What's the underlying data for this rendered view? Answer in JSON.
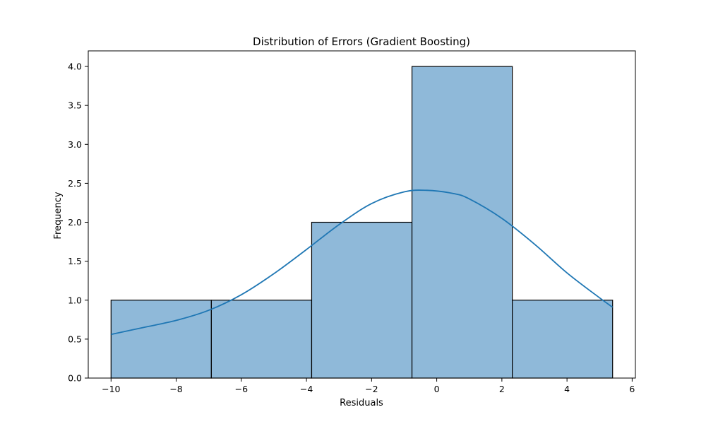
{
  "chart_data": {
    "type": "bar",
    "title": "Distribution of Errors (Gradient Boosting)",
    "xlabel": "Residuals",
    "ylabel": "Frequency",
    "xlim": [
      -10.7,
      6.1
    ],
    "ylim": [
      0,
      4.2
    ],
    "xticks": [
      -10,
      -8,
      -6,
      -4,
      -2,
      0,
      2,
      4,
      6
    ],
    "xtick_labels": [
      "−10",
      "−8",
      "−6",
      "−4",
      "−2",
      "0",
      "2",
      "4",
      "6"
    ],
    "yticks": [
      0.0,
      0.5,
      1.0,
      1.5,
      2.0,
      2.5,
      3.0,
      3.5,
      4.0
    ],
    "ytick_labels": [
      "0.0",
      "0.5",
      "1.0",
      "1.5",
      "2.0",
      "2.5",
      "3.0",
      "3.5",
      "4.0"
    ],
    "bins": [
      {
        "x0": -10.0,
        "x1": -6.92,
        "count": 1
      },
      {
        "x0": -6.92,
        "x1": -3.84,
        "count": 1
      },
      {
        "x0": -3.84,
        "x1": -0.76,
        "count": 2
      },
      {
        "x0": -0.76,
        "x1": 2.32,
        "count": 4
      },
      {
        "x0": 2.32,
        "x1": 5.4,
        "count": 1
      }
    ],
    "kde": {
      "x": [
        -10,
        -9,
        -8,
        -7,
        -6,
        -5,
        -4,
        -3,
        -2,
        -1,
        -0.3,
        0.5,
        1,
        2,
        3,
        4,
        5,
        5.4
      ],
      "y": [
        0.56,
        0.65,
        0.74,
        0.87,
        1.07,
        1.34,
        1.65,
        1.97,
        2.24,
        2.39,
        2.41,
        2.37,
        2.3,
        2.05,
        1.72,
        1.35,
        1.03,
        0.91
      ]
    },
    "grid": false,
    "legend": "none",
    "colors": {
      "bar_fill": "#8fb9d9",
      "bar_edge": "#000000",
      "kde_line": "#1f77b4"
    }
  }
}
